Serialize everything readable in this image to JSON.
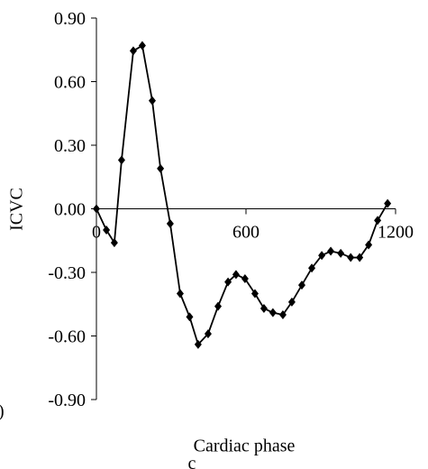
{
  "chart_data": {
    "type": "line",
    "x_label": "Cardiac phase",
    "y_label": "ICVC",
    "annotations": [
      "c",
      ")"
    ],
    "x": [
      0,
      40,
      72,
      101,
      148,
      184,
      224,
      257,
      296,
      336,
      374,
      408,
      448,
      488,
      528,
      560,
      596,
      636,
      672,
      708,
      748,
      784,
      824,
      864,
      904,
      940,
      980,
      1020,
      1056,
      1092,
      1128,
      1168
    ],
    "series": [
      {
        "color": "#000000",
        "values": [
          0.0,
          -0.1,
          -0.16,
          0.23,
          0.745,
          0.77,
          0.51,
          0.19,
          -0.07,
          -0.4,
          -0.51,
          -0.64,
          -0.59,
          -0.46,
          -0.345,
          -0.31,
          -0.33,
          -0.4,
          -0.47,
          -0.49,
          -0.5,
          -0.44,
          -0.36,
          -0.28,
          -0.22,
          -0.2,
          -0.21,
          -0.23,
          -0.23,
          -0.17,
          -0.055,
          0.025
        ]
      }
    ],
    "xlim": [
      0,
      1200
    ],
    "xticks": [
      0,
      600,
      1200
    ],
    "ylim": [
      -0.9,
      0.9
    ],
    "yticks": [
      {
        "value": 0.9,
        "label": "0.90"
      },
      {
        "value": 0.6,
        "label": "0.60"
      },
      {
        "value": 0.3,
        "label": "0.30"
      },
      {
        "value": 0,
        "label": "0.00"
      },
      {
        "value": -0.3,
        "label": "-0.30"
      },
      {
        "value": -0.6,
        "label": "-0.60"
      },
      {
        "value": -0.9,
        "label": "-0.90"
      }
    ],
    "marker": "diamond"
  }
}
